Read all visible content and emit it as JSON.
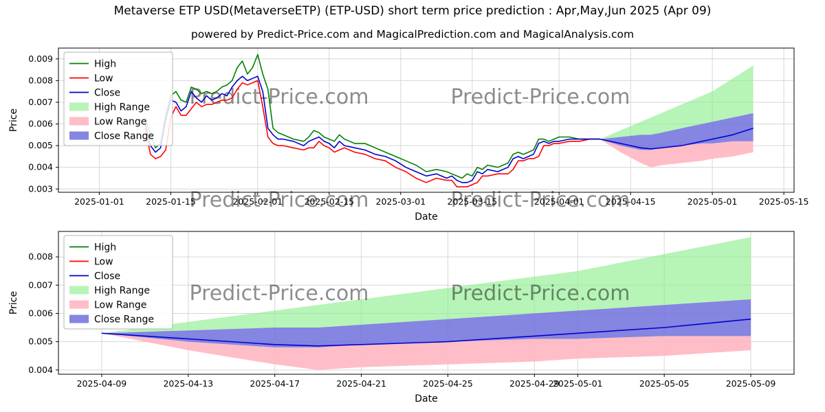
{
  "page": {
    "title": "Metaverse ETP USD(MetaverseETP) (ETP-USD) short term price prediction : Apr,May,Jun 2025 (Apr 09)",
    "subtitle": "powered by Predict-Price.com and MagicalPrediction.com and MagicalAnalysis.com",
    "watermark": "Predict-Price.com"
  },
  "colors": {
    "high": "#008000",
    "low": "#ff0000",
    "close": "#0000cd",
    "high_range": "#90ee90",
    "low_range": "#ffb6c1",
    "close_range": "#7070dd",
    "grid": "#d6d6d6",
    "watermark": "#9e9e9e"
  },
  "legend": [
    {
      "label": "High",
      "swatch": "line",
      "color": "high"
    },
    {
      "label": "Low",
      "swatch": "line",
      "color": "low"
    },
    {
      "label": "Close",
      "swatch": "line",
      "color": "close"
    },
    {
      "label": "High Range",
      "swatch": "patch",
      "color": "high_range",
      "opacity": 0.65
    },
    {
      "label": "Low Range",
      "swatch": "patch",
      "color": "low_range",
      "opacity": 0.9
    },
    {
      "label": "Close Range",
      "swatch": "patch",
      "color": "close_range",
      "opacity": 0.85
    }
  ],
  "chart_data": [
    {
      "type": "line",
      "title": "",
      "xlabel": "Date",
      "ylabel": "Price",
      "legend_position": "upper left",
      "xlim": [
        "2024-12-24",
        "2025-05-17"
      ],
      "ylim": [
        0.00285,
        0.0095
      ],
      "xticks": [
        "2025-01-01",
        "2025-01-15",
        "2025-02-01",
        "2025-02-15",
        "2025-03-01",
        "2025-03-15",
        "2025-04-01",
        "2025-04-15",
        "2025-05-01",
        "2025-05-15"
      ],
      "yticks": [
        0.003,
        0.004,
        0.005,
        0.006,
        0.007,
        0.008,
        0.009
      ],
      "series": [
        {
          "name": "High",
          "color": "high",
          "x": [
            "2025-01-10",
            "2025-01-11",
            "2025-01-12",
            "2025-01-13",
            "2025-01-14",
            "2025-01-15",
            "2025-01-16",
            "2025-01-17",
            "2025-01-18",
            "2025-01-19",
            "2025-01-20",
            "2025-01-21",
            "2025-01-22",
            "2025-01-23",
            "2025-01-24",
            "2025-01-25",
            "2025-01-26",
            "2025-01-27",
            "2025-01-28",
            "2025-01-29",
            "2025-01-30",
            "2025-01-31",
            "2025-02-01",
            "2025-02-02",
            "2025-02-03",
            "2025-02-04",
            "2025-02-05",
            "2025-02-06",
            "2025-02-08",
            "2025-02-10",
            "2025-02-11",
            "2025-02-12",
            "2025-02-13",
            "2025-02-14",
            "2025-02-15",
            "2025-02-16",
            "2025-02-17",
            "2025-02-18",
            "2025-02-20",
            "2025-02-22",
            "2025-02-24",
            "2025-02-26",
            "2025-02-28",
            "2025-03-02",
            "2025-03-04",
            "2025-03-06",
            "2025-03-08",
            "2025-03-10",
            "2025-03-11",
            "2025-03-12",
            "2025-03-13",
            "2025-03-14",
            "2025-03-15",
            "2025-03-16",
            "2025-03-17",
            "2025-03-18",
            "2025-03-20",
            "2025-03-22",
            "2025-03-23",
            "2025-03-24",
            "2025-03-25",
            "2025-03-26",
            "2025-03-27",
            "2025-03-28",
            "2025-03-29",
            "2025-03-30",
            "2025-03-31",
            "2025-04-01",
            "2025-04-03",
            "2025-04-05",
            "2025-04-07",
            "2025-04-09"
          ],
          "y": [
            0.0063,
            0.0055,
            0.0049,
            0.0051,
            0.0064,
            0.0073,
            0.0075,
            0.0071,
            0.007,
            0.0077,
            0.0076,
            0.0074,
            0.0075,
            0.0074,
            0.0075,
            0.0077,
            0.0078,
            0.008,
            0.0086,
            0.0089,
            0.0083,
            0.0086,
            0.0092,
            0.0083,
            0.0076,
            0.0058,
            0.0056,
            0.0055,
            0.0053,
            0.0052,
            0.0054,
            0.0057,
            0.0056,
            0.0054,
            0.0053,
            0.0052,
            0.0055,
            0.0053,
            0.0051,
            0.0051,
            0.0049,
            0.0047,
            0.0045,
            0.0043,
            0.0041,
            0.0038,
            0.0039,
            0.0038,
            0.0037,
            0.0036,
            0.0035,
            0.0037,
            0.0036,
            0.004,
            0.0039,
            0.0041,
            0.004,
            0.0042,
            0.0046,
            0.0047,
            0.0046,
            0.0047,
            0.0048,
            0.0053,
            0.0053,
            0.0052,
            0.0053,
            0.0054,
            0.0054,
            0.0053,
            0.0053,
            0.0053
          ]
        },
        {
          "name": "Low",
          "color": "low",
          "x": [
            "2025-01-10",
            "2025-01-11",
            "2025-01-12",
            "2025-01-13",
            "2025-01-14",
            "2025-01-15",
            "2025-01-16",
            "2025-01-17",
            "2025-01-18",
            "2025-01-19",
            "2025-01-20",
            "2025-01-21",
            "2025-01-22",
            "2025-01-23",
            "2025-01-24",
            "2025-01-25",
            "2025-01-26",
            "2025-01-27",
            "2025-01-28",
            "2025-01-29",
            "2025-01-30",
            "2025-01-31",
            "2025-02-01",
            "2025-02-02",
            "2025-02-03",
            "2025-02-04",
            "2025-02-05",
            "2025-02-06",
            "2025-02-08",
            "2025-02-10",
            "2025-02-11",
            "2025-02-12",
            "2025-02-13",
            "2025-02-14",
            "2025-02-15",
            "2025-02-16",
            "2025-02-17",
            "2025-02-18",
            "2025-02-20",
            "2025-02-22",
            "2025-02-24",
            "2025-02-26",
            "2025-02-28",
            "2025-03-02",
            "2025-03-04",
            "2025-03-06",
            "2025-03-08",
            "2025-03-10",
            "2025-03-11",
            "2025-03-12",
            "2025-03-13",
            "2025-03-14",
            "2025-03-15",
            "2025-03-16",
            "2025-03-17",
            "2025-03-18",
            "2025-03-20",
            "2025-03-22",
            "2025-03-23",
            "2025-03-24",
            "2025-03-25",
            "2025-03-26",
            "2025-03-27",
            "2025-03-28",
            "2025-03-29",
            "2025-03-30",
            "2025-03-31",
            "2025-04-01",
            "2025-04-03",
            "2025-04-05",
            "2025-04-07",
            "2025-04-09"
          ],
          "y": [
            0.0058,
            0.0046,
            0.0044,
            0.0045,
            0.0048,
            0.0063,
            0.0068,
            0.0064,
            0.0064,
            0.0067,
            0.007,
            0.0068,
            0.0069,
            0.0069,
            0.007,
            0.0071,
            0.0071,
            0.0072,
            0.0076,
            0.0079,
            0.0078,
            0.0079,
            0.008,
            0.0068,
            0.0054,
            0.0051,
            0.005,
            0.005,
            0.0049,
            0.0048,
            0.0049,
            0.0049,
            0.0052,
            0.005,
            0.0049,
            0.0047,
            0.0048,
            0.0049,
            0.0047,
            0.0046,
            0.0044,
            0.0043,
            0.004,
            0.0038,
            0.0035,
            0.0033,
            0.0035,
            0.0034,
            0.0034,
            0.0031,
            0.0031,
            0.0031,
            0.0032,
            0.0033,
            0.0036,
            0.0036,
            0.0037,
            0.0037,
            0.0039,
            0.0043,
            0.0043,
            0.0044,
            0.0044,
            0.0045,
            0.005,
            0.005,
            0.0051,
            0.0051,
            0.0052,
            0.0052,
            0.0053,
            0.0053
          ]
        },
        {
          "name": "Close",
          "color": "close",
          "x": [
            "2025-01-10",
            "2025-01-11",
            "2025-01-12",
            "2025-01-13",
            "2025-01-14",
            "2025-01-15",
            "2025-01-16",
            "2025-01-17",
            "2025-01-18",
            "2025-01-19",
            "2025-01-20",
            "2025-01-21",
            "2025-01-22",
            "2025-01-23",
            "2025-01-24",
            "2025-01-25",
            "2025-01-26",
            "2025-01-27",
            "2025-01-28",
            "2025-01-29",
            "2025-01-30",
            "2025-01-31",
            "2025-02-01",
            "2025-02-02",
            "2025-02-03",
            "2025-02-04",
            "2025-02-05",
            "2025-02-06",
            "2025-02-08",
            "2025-02-10",
            "2025-02-11",
            "2025-02-12",
            "2025-02-13",
            "2025-02-14",
            "2025-02-15",
            "2025-02-16",
            "2025-02-17",
            "2025-02-18",
            "2025-02-20",
            "2025-02-22",
            "2025-02-24",
            "2025-02-26",
            "2025-02-28",
            "2025-03-02",
            "2025-03-04",
            "2025-03-06",
            "2025-03-08",
            "2025-03-10",
            "2025-03-11",
            "2025-03-12",
            "2025-03-13",
            "2025-03-14",
            "2025-03-15",
            "2025-03-16",
            "2025-03-17",
            "2025-03-18",
            "2025-03-20",
            "2025-03-22",
            "2025-03-23",
            "2025-03-24",
            "2025-03-25",
            "2025-03-26",
            "2025-03-27",
            "2025-03-28",
            "2025-03-29",
            "2025-03-30",
            "2025-03-31",
            "2025-04-01",
            "2025-04-03",
            "2025-04-05",
            "2025-04-07",
            "2025-04-09",
            "2025-04-13",
            "2025-04-17",
            "2025-04-19",
            "2025-04-21",
            "2025-04-25",
            "2025-04-29",
            "2025-05-01",
            "2025-05-05",
            "2025-05-09"
          ],
          "y": [
            0.006,
            0.005,
            0.0047,
            0.0049,
            0.0062,
            0.0071,
            0.007,
            0.0066,
            0.0068,
            0.0075,
            0.0072,
            0.007,
            0.0073,
            0.0071,
            0.0072,
            0.0074,
            0.0073,
            0.0077,
            0.008,
            0.0082,
            0.008,
            0.0081,
            0.0082,
            0.0075,
            0.0058,
            0.0055,
            0.0053,
            0.0053,
            0.0052,
            0.005,
            0.0052,
            0.0053,
            0.0054,
            0.0052,
            0.0051,
            0.0049,
            0.0052,
            0.005,
            0.0049,
            0.0048,
            0.0046,
            0.0045,
            0.0043,
            0.004,
            0.0038,
            0.0036,
            0.0037,
            0.0035,
            0.0036,
            0.0034,
            0.0033,
            0.0033,
            0.0034,
            0.0038,
            0.0037,
            0.0039,
            0.0038,
            0.004,
            0.0044,
            0.0045,
            0.0044,
            0.0045,
            0.0046,
            0.0051,
            0.0052,
            0.0051,
            0.0052,
            0.0052,
            0.0053,
            0.0053,
            0.0053,
            0.0053,
            0.0051,
            0.0049,
            0.00485,
            0.0049,
            0.005,
            0.0052,
            0.0053,
            0.0055,
            0.0058
          ]
        }
      ],
      "bands": [
        {
          "name": "High Range",
          "color": "high_range",
          "opacity": 0.65,
          "x": [
            "2025-04-09",
            "2025-04-13",
            "2025-04-17",
            "2025-04-19",
            "2025-04-21",
            "2025-04-25",
            "2025-04-29",
            "2025-05-01",
            "2025-05-05",
            "2025-05-09"
          ],
          "upper": [
            0.0053,
            0.0057,
            0.0061,
            0.0063,
            0.0065,
            0.0069,
            0.0073,
            0.0075,
            0.0081,
            0.0087
          ],
          "lower": [
            0.0053,
            0.0054,
            0.0055,
            0.0055,
            0.0056,
            0.0058,
            0.006,
            0.0061,
            0.0063,
            0.0065
          ]
        },
        {
          "name": "Low Range",
          "color": "low_range",
          "opacity": 0.9,
          "x": [
            "2025-04-09",
            "2025-04-13",
            "2025-04-17",
            "2025-04-19",
            "2025-04-21",
            "2025-04-25",
            "2025-04-29",
            "2025-05-01",
            "2025-05-05",
            "2025-05-09"
          ],
          "upper": [
            0.0053,
            0.005,
            0.0048,
            0.0048,
            0.0049,
            0.005,
            0.0051,
            0.0051,
            0.0052,
            0.0052
          ],
          "lower": [
            0.0053,
            0.0047,
            0.0042,
            0.004,
            0.0041,
            0.0042,
            0.0043,
            0.0044,
            0.0045,
            0.0047
          ]
        },
        {
          "name": "Close Range",
          "color": "close_range",
          "opacity": 0.85,
          "x": [
            "2025-04-09",
            "2025-04-13",
            "2025-04-17",
            "2025-04-19",
            "2025-04-21",
            "2025-04-25",
            "2025-04-29",
            "2025-05-01",
            "2025-05-05",
            "2025-05-09"
          ],
          "upper": [
            0.0053,
            0.0054,
            0.0055,
            0.0055,
            0.0056,
            0.0058,
            0.006,
            0.0061,
            0.0063,
            0.0065
          ],
          "lower": [
            0.0053,
            0.005,
            0.0048,
            0.0048,
            0.0049,
            0.005,
            0.0051,
            0.0051,
            0.0052,
            0.0052
          ]
        }
      ]
    },
    {
      "type": "line",
      "title": "",
      "xlabel": "Date",
      "ylabel": "Price",
      "legend_position": "upper left",
      "xlim": [
        "2025-04-07",
        "2025-05-11"
      ],
      "ylim": [
        0.00385,
        0.0089
      ],
      "xticks": [
        "2025-04-09",
        "2025-04-13",
        "2025-04-17",
        "2025-04-21",
        "2025-04-25",
        "2025-04-29",
        "2025-05-01",
        "2025-05-05",
        "2025-05-09"
      ],
      "yticks": [
        0.004,
        0.005,
        0.006,
        0.007,
        0.008
      ],
      "series": [
        {
          "name": "Close",
          "color": "close",
          "x": [
            "2025-04-09",
            "2025-04-13",
            "2025-04-17",
            "2025-04-19",
            "2025-04-21",
            "2025-04-25",
            "2025-04-29",
            "2025-05-01",
            "2025-05-05",
            "2025-05-09"
          ],
          "y": [
            0.0053,
            0.0051,
            0.0049,
            0.00485,
            0.0049,
            0.005,
            0.0052,
            0.0053,
            0.0055,
            0.0058
          ]
        }
      ],
      "bands": [
        {
          "name": "High Range",
          "color": "high_range",
          "opacity": 0.65,
          "x": [
            "2025-04-09",
            "2025-04-13",
            "2025-04-17",
            "2025-04-19",
            "2025-04-21",
            "2025-04-25",
            "2025-04-29",
            "2025-05-01",
            "2025-05-05",
            "2025-05-09"
          ],
          "upper": [
            0.0053,
            0.0057,
            0.0061,
            0.0063,
            0.0065,
            0.0069,
            0.0073,
            0.0075,
            0.0081,
            0.0087
          ],
          "lower": [
            0.0053,
            0.0054,
            0.0055,
            0.0055,
            0.0056,
            0.0058,
            0.006,
            0.0061,
            0.0063,
            0.0065
          ]
        },
        {
          "name": "Low Range",
          "color": "low_range",
          "opacity": 0.9,
          "x": [
            "2025-04-09",
            "2025-04-13",
            "2025-04-17",
            "2025-04-19",
            "2025-04-21",
            "2025-04-25",
            "2025-04-29",
            "2025-05-01",
            "2025-05-05",
            "2025-05-09"
          ],
          "upper": [
            0.0053,
            0.005,
            0.0048,
            0.0048,
            0.0049,
            0.005,
            0.0051,
            0.0051,
            0.0052,
            0.0052
          ],
          "lower": [
            0.0053,
            0.0047,
            0.0042,
            0.004,
            0.0041,
            0.0042,
            0.0043,
            0.0044,
            0.0045,
            0.0047
          ]
        },
        {
          "name": "Close Range",
          "color": "close_range",
          "opacity": 0.85,
          "x": [
            "2025-04-09",
            "2025-04-13",
            "2025-04-17",
            "2025-04-19",
            "2025-04-21",
            "2025-04-25",
            "2025-04-29",
            "2025-05-01",
            "2025-05-05",
            "2025-05-09"
          ],
          "upper": [
            0.0053,
            0.0054,
            0.0055,
            0.0055,
            0.0056,
            0.0058,
            0.006,
            0.0061,
            0.0063,
            0.0065
          ],
          "lower": [
            0.0053,
            0.005,
            0.0048,
            0.0048,
            0.0049,
            0.005,
            0.0051,
            0.0051,
            0.0052,
            0.0052
          ]
        }
      ]
    }
  ]
}
